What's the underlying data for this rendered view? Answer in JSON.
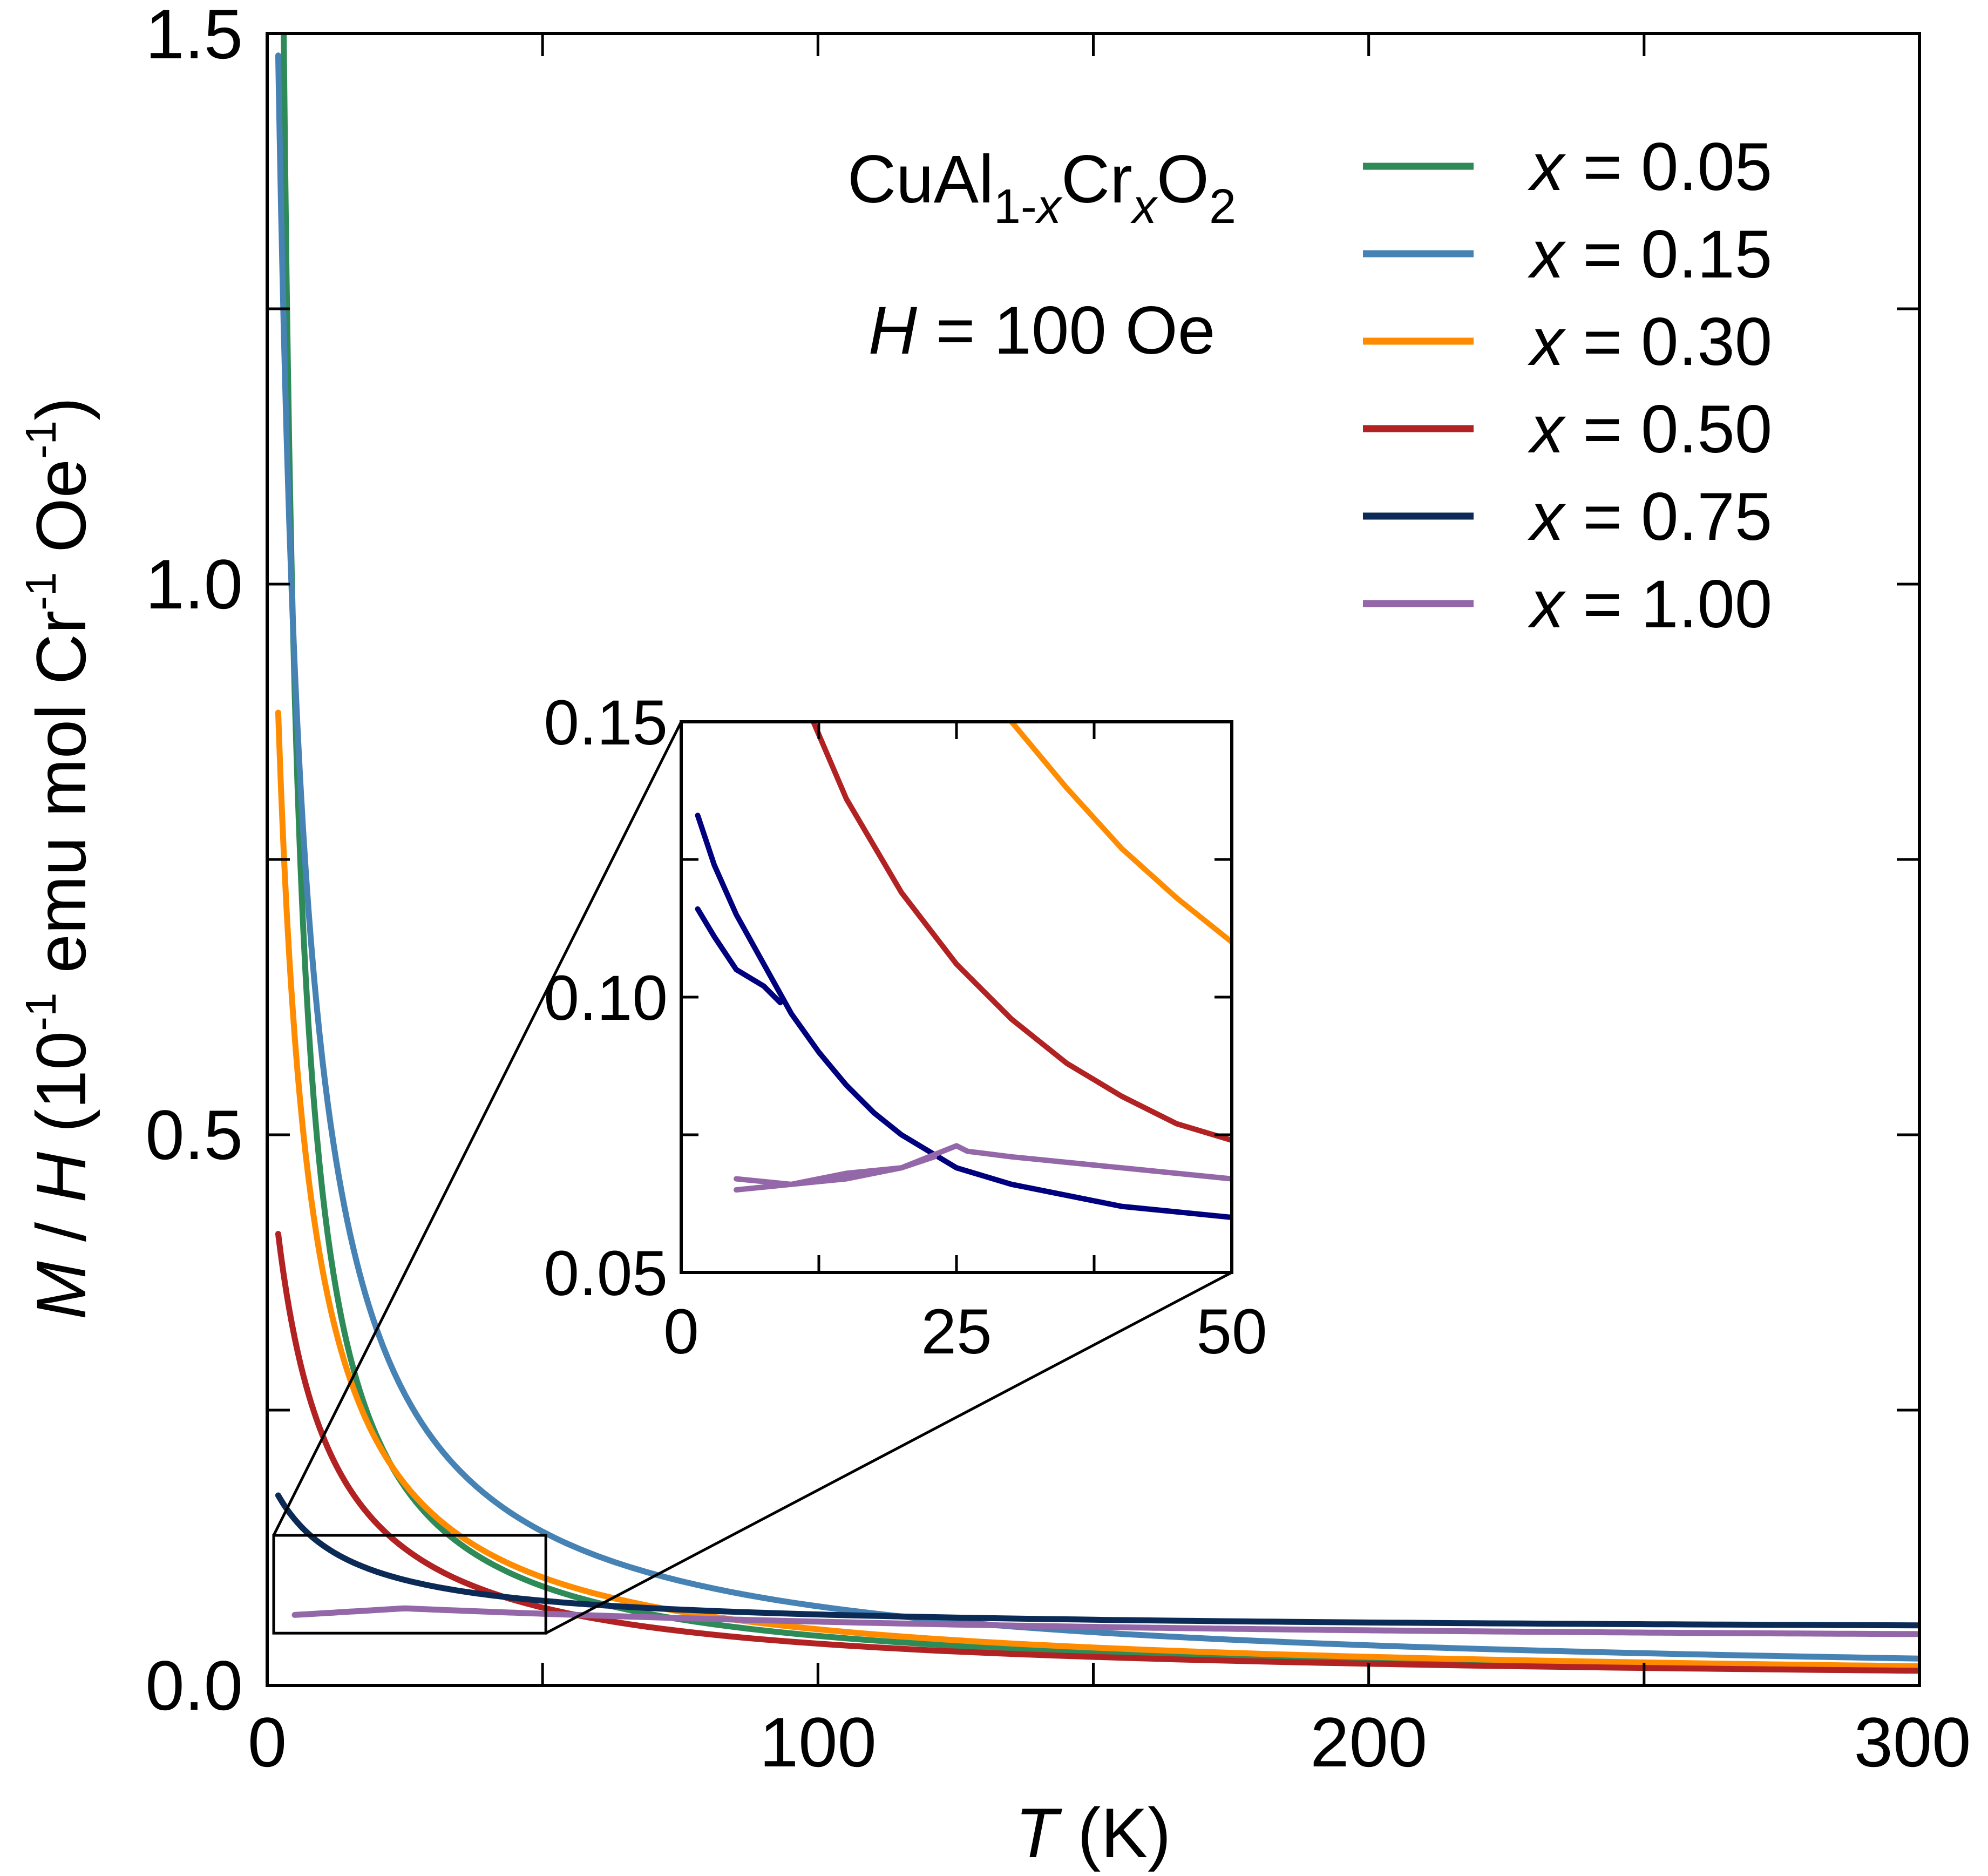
{
  "chart_data": {
    "type": "line",
    "title": "",
    "xlabel_var": "T",
    "xlabel_unit": "(K)",
    "ylabel": {
      "var1": "M",
      "sep": " / ",
      "var2": "H",
      "open": " (10",
      "exp1": "-1",
      "mid": " emu mol Cr",
      "exp2": "-1",
      "tail": " Oe",
      "exp3": "-1",
      "close": ")"
    },
    "xlim": [
      0,
      300
    ],
    "ylim": [
      0,
      1.5
    ],
    "x_ticks": [
      0,
      100,
      200,
      300
    ],
    "x_tick_labels": [
      "0",
      "100",
      "200",
      "300"
    ],
    "x_minor_ticks": [
      50,
      150,
      250
    ],
    "y_ticks": [
      0,
      0.5,
      1.0,
      1.5
    ],
    "y_tick_labels": [
      "0.0",
      "0.5",
      "1.0",
      "1.5"
    ],
    "y_minor_ticks": [
      0.25,
      0.75,
      1.25
    ],
    "annotations": {
      "compound": {
        "base1": "CuAl",
        "sub1_num": "1-",
        "sub1_var": "x",
        "base2": "Cr",
        "sub2_var": "x",
        "base3": "O",
        "sub3": "2"
      },
      "field": {
        "var": "H",
        "text": " = 100 Oe"
      }
    },
    "legend_position": "top-right",
    "series": [
      {
        "name": "x = 0.05",
        "label_var": "x",
        "label_rest": " = 0.05",
        "color": "#2e8b57",
        "C": 4.5,
        "theta": 0,
        "chi0": 0.0,
        "x_start": 3,
        "x_end": 300
      },
      {
        "name": "x = 0.15",
        "label_var": "x",
        "label_rest": " = 0.15",
        "color": "#4682b4",
        "C": 7.4,
        "theta": 3,
        "chi0": 0.0,
        "x_start": 2,
        "x_end": 300
      },
      {
        "name": "x = 0.30",
        "label_var": "x",
        "label_rest": " = 0.30",
        "color": "#ff8c00",
        "C": 5.3,
        "theta": 4,
        "chi0": 0.0,
        "x_start": 2,
        "x_end": 300
      },
      {
        "name": "x = 0.50",
        "label_var": "x",
        "label_rest": " = 0.50",
        "color": "#b22222",
        "C": 4.1,
        "theta": 8,
        "chi0": 0.0,
        "x_start": 2,
        "x_end": 300
      },
      {
        "name": "x = 0.75",
        "label_var": "x",
        "label_rest": " = 0.75",
        "color": "#0b2b56",
        "C": 1.73,
        "theta": 12,
        "chi0": 0.049,
        "x_start": 2,
        "x_end": 300
      },
      {
        "name": "x = 1.00",
        "label_var": "x",
        "label_rest": " = 1.00",
        "color": "#9467a8",
        "flat_from": 0.064,
        "peak_T": 25,
        "peak_val": 0.07,
        "end_val": 0.044,
        "x_start": 5,
        "x_end": 300
      }
    ],
    "zoom_box": {
      "xlim": [
        0,
        50
      ],
      "ylim": [
        0.045,
        0.15
      ]
    },
    "inset": {
      "type": "line",
      "xlim": [
        0,
        50
      ],
      "ylim": [
        0.05,
        0.15
      ],
      "x_ticks": [
        0,
        25,
        50
      ],
      "x_tick_labels": [
        "0",
        "25",
        "50"
      ],
      "x_minor_ticks": [
        12.5,
        37.5
      ],
      "y_ticks": [
        0.05,
        0.1,
        0.15
      ],
      "y_tick_labels": [
        "0.05",
        "0.10",
        "0.15"
      ],
      "y_minor_ticks": [
        0.075,
        0.125
      ],
      "series": [
        {
          "name": "x = 0.30",
          "color": "#ff8c00",
          "points": [
            [
              30,
              0.15
            ],
            [
              35,
              0.138
            ],
            [
              40,
              0.127
            ],
            [
              45,
              0.118
            ],
            [
              50,
              0.11
            ]
          ]
        },
        {
          "name": "x = 0.50",
          "color": "#b22222",
          "points": [
            [
              12,
              0.15
            ],
            [
              15,
              0.136
            ],
            [
              20,
              0.119
            ],
            [
              25,
              0.106
            ],
            [
              30,
              0.096
            ],
            [
              35,
              0.088
            ],
            [
              40,
              0.082
            ],
            [
              45,
              0.077
            ],
            [
              50,
              0.074
            ]
          ]
        },
        {
          "name": "x = 0.75",
          "color": "#00007f",
          "points": [
            [
              1.5,
              0.133
            ],
            [
              3,
              0.124
            ],
            [
              5,
              0.115
            ],
            [
              7.5,
              0.106
            ],
            [
              10,
              0.097
            ],
            [
              12.5,
              0.09
            ],
            [
              15,
              0.084
            ],
            [
              17.5,
              0.079
            ],
            [
              20,
              0.075
            ],
            [
              25,
              0.069
            ],
            [
              30,
              0.066
            ],
            [
              35,
              0.064
            ],
            [
              40,
              0.062
            ],
            [
              45,
              0.061
            ],
            [
              50,
              0.06
            ]
          ]
        },
        {
          "name": "x = 0.75 (branch)",
          "color": "#00007f",
          "points": [
            [
              1.5,
              0.116
            ],
            [
              3,
              0.111
            ],
            [
              5,
              0.105
            ],
            [
              7.5,
              0.102
            ],
            [
              9,
              0.099
            ]
          ]
        },
        {
          "name": "x = 1.00",
          "color": "#9467a8",
          "points": [
            [
              5,
              0.067
            ],
            [
              10,
              0.066
            ],
            [
              15,
              0.067
            ],
            [
              20,
              0.069
            ],
            [
              25,
              0.073
            ],
            [
              26,
              0.072
            ],
            [
              30,
              0.071
            ],
            [
              35,
              0.07
            ],
            [
              40,
              0.069
            ],
            [
              45,
              0.068
            ],
            [
              50,
              0.067
            ]
          ]
        },
        {
          "name": "x = 1.00 (branch)",
          "color": "#9467a8",
          "points": [
            [
              5,
              0.065
            ],
            [
              10,
              0.066
            ],
            [
              15,
              0.068
            ],
            [
              20,
              0.069
            ],
            [
              23,
              0.071
            ]
          ]
        }
      ]
    }
  }
}
